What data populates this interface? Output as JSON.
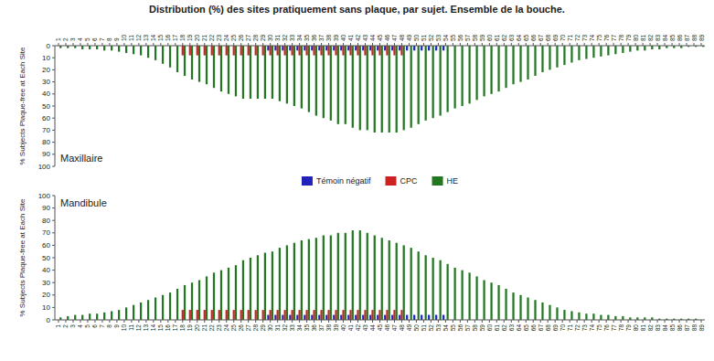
{
  "chart_data": [
    {
      "type": "bar",
      "title": "Distribution (%) des sites pratiquement sans plaque, par sujet. Ensemble de la bouche.",
      "ylabel": "% Subjects Plaque-free at Each Site",
      "annotations": [
        "Maxillaire"
      ],
      "categories": [
        "1",
        "2",
        "3",
        "4",
        "5",
        "6",
        "7",
        "8",
        "9",
        "10",
        "11",
        "12",
        "13",
        "14",
        "15",
        "16",
        "17",
        "18",
        "19",
        "20",
        "21",
        "22",
        "23",
        "24",
        "25",
        "26",
        "27",
        "28",
        "29",
        "30",
        "31",
        "32",
        "33",
        "34",
        "35",
        "36",
        "37",
        "38",
        "39",
        "40",
        "41",
        "42",
        "43",
        "44",
        "45",
        "46",
        "47",
        "48",
        "49",
        "50",
        "51",
        "52",
        "53",
        "54",
        "55",
        "56",
        "57",
        "58",
        "59",
        "60",
        "61",
        "62",
        "63",
        "64",
        "65",
        "66",
        "67",
        "68",
        "69",
        "70",
        "71",
        "72",
        "73",
        "74",
        "75",
        "76",
        "77",
        "78",
        "79",
        "80",
        "81",
        "82",
        "83",
        "84",
        "85",
        "86",
        "87",
        "88",
        "89"
      ],
      "series": [
        {
          "name": "Témoin négatif",
          "color": "#2222bb",
          "values": [
            0,
            0,
            0,
            0,
            0,
            0,
            0,
            0,
            0,
            0,
            0,
            0,
            0,
            0,
            0,
            0,
            0,
            0,
            0,
            0,
            0,
            0,
            0,
            0,
            0,
            0,
            0,
            0,
            0,
            4,
            4,
            4,
            4,
            4,
            4,
            4,
            4,
            4,
            4,
            4,
            4,
            4,
            4,
            4,
            4,
            4,
            4,
            4,
            4,
            4,
            4,
            4,
            4,
            4,
            0,
            0,
            0,
            0,
            0,
            0,
            0,
            0,
            0,
            0,
            0,
            0,
            0,
            0,
            0,
            0,
            0,
            0,
            0,
            0,
            0,
            0,
            0,
            0,
            0,
            0,
            0,
            0,
            0,
            0,
            0,
            0,
            0,
            0,
            0
          ]
        },
        {
          "name": "CPC",
          "color": "#cc2222",
          "values": [
            0,
            0,
            0,
            0,
            0,
            0,
            0,
            0,
            0,
            0,
            0,
            0,
            0,
            0,
            0,
            0,
            0,
            8,
            8,
            8,
            8,
            8,
            8,
            8,
            8,
            8,
            8,
            8,
            8,
            8,
            8,
            8,
            8,
            8,
            8,
            8,
            8,
            8,
            8,
            8,
            8,
            8,
            8,
            8,
            8,
            8,
            8,
            8,
            0,
            0,
            0,
            0,
            0,
            0,
            0,
            0,
            0,
            0,
            0,
            0,
            0,
            0,
            0,
            0,
            0,
            0,
            0,
            0,
            0,
            0,
            0,
            0,
            0,
            0,
            0,
            0,
            0,
            0,
            0,
            0,
            0,
            0,
            0,
            0,
            0,
            0,
            0,
            0,
            0
          ]
        },
        {
          "name": "HE",
          "color": "#227722",
          "values": [
            2,
            2,
            2,
            3,
            3,
            3,
            4,
            4,
            5,
            6,
            7,
            8,
            10,
            12,
            15,
            18,
            22,
            25,
            28,
            30,
            32,
            35,
            38,
            40,
            42,
            44,
            44,
            44,
            44,
            44,
            46,
            48,
            50,
            52,
            55,
            58,
            60,
            62,
            65,
            65,
            68,
            70,
            70,
            72,
            72,
            72,
            72,
            70,
            68,
            65,
            62,
            60,
            58,
            55,
            52,
            50,
            48,
            45,
            42,
            40,
            38,
            35,
            32,
            30,
            28,
            25,
            22,
            20,
            18,
            16,
            14,
            12,
            11,
            10,
            9,
            8,
            7,
            6,
            5,
            4,
            4,
            3,
            3,
            2,
            2,
            2,
            1,
            1,
            1
          ]
        }
      ],
      "ylim": [
        100,
        0
      ],
      "yticks": [
        0,
        10,
        20,
        30,
        40,
        50,
        60,
        70,
        80,
        90,
        100
      ],
      "grid": false,
      "legend": "bottom"
    },
    {
      "type": "bar",
      "ylabel": "% Subjects Plaque-free at Each Site",
      "annotations": [
        "Mandibule"
      ],
      "categories": [
        "1",
        "2",
        "3",
        "4",
        "5",
        "6",
        "7",
        "8",
        "9",
        "10",
        "11",
        "12",
        "13",
        "14",
        "15",
        "16",
        "17",
        "18",
        "19",
        "20",
        "21",
        "22",
        "23",
        "24",
        "25",
        "26",
        "27",
        "28",
        "29",
        "30",
        "31",
        "32",
        "33",
        "34",
        "35",
        "36",
        "37",
        "38",
        "39",
        "40",
        "41",
        "42",
        "43",
        "44",
        "45",
        "46",
        "47",
        "48",
        "49",
        "50",
        "51",
        "52",
        "53",
        "54",
        "55",
        "56",
        "57",
        "58",
        "59",
        "60",
        "61",
        "62",
        "63",
        "64",
        "65",
        "66",
        "67",
        "68",
        "69",
        "70",
        "71",
        "72",
        "73",
        "74",
        "75",
        "76",
        "77",
        "78",
        "79",
        "80",
        "81",
        "82",
        "83",
        "84",
        "85",
        "86",
        "87",
        "88",
        "89"
      ],
      "series": [
        {
          "color": "#2222bb",
          "values": [
            0,
            0,
            0,
            0,
            0,
            0,
            0,
            0,
            0,
            0,
            0,
            0,
            0,
            0,
            0,
            0,
            0,
            0,
            0,
            0,
            0,
            0,
            0,
            0,
            0,
            0,
            0,
            0,
            0,
            4,
            4,
            4,
            4,
            4,
            4,
            4,
            4,
            4,
            4,
            4,
            4,
            4,
            4,
            4,
            4,
            4,
            4,
            4,
            4,
            4,
            4,
            4,
            4,
            4,
            0,
            0,
            0,
            0,
            0,
            0,
            0,
            0,
            0,
            0,
            0,
            0,
            0,
            0,
            0,
            0,
            0,
            0,
            0,
            0,
            0,
            0,
            0,
            0,
            0,
            0,
            0,
            0,
            0,
            0,
            0,
            0,
            0,
            0,
            0
          ]
        },
        {
          "color": "#cc2222",
          "values": [
            0,
            0,
            0,
            0,
            0,
            0,
            0,
            0,
            0,
            0,
            0,
            0,
            0,
            0,
            0,
            0,
            0,
            8,
            8,
            8,
            8,
            8,
            8,
            8,
            8,
            8,
            8,
            8,
            8,
            8,
            8,
            8,
            8,
            8,
            8,
            8,
            8,
            8,
            8,
            8,
            8,
            8,
            8,
            8,
            8,
            8,
            8,
            8,
            0,
            0,
            0,
            0,
            0,
            0,
            0,
            0,
            0,
            0,
            0,
            0,
            0,
            0,
            0,
            0,
            0,
            0,
            0,
            0,
            0,
            0,
            0,
            0,
            0,
            0,
            0,
            0,
            0,
            0,
            0,
            0,
            0,
            0,
            0,
            0,
            0,
            0,
            0,
            0,
            0
          ]
        },
        {
          "color": "#227722",
          "values": [
            2,
            3,
            4,
            4,
            5,
            5,
            6,
            7,
            8,
            10,
            12,
            14,
            16,
            18,
            20,
            22,
            25,
            28,
            30,
            32,
            35,
            38,
            40,
            42,
            44,
            48,
            50,
            52,
            54,
            55,
            58,
            60,
            62,
            64,
            65,
            66,
            68,
            68,
            70,
            70,
            72,
            72,
            70,
            68,
            66,
            64,
            62,
            60,
            58,
            55,
            52,
            50,
            48,
            45,
            42,
            40,
            38,
            35,
            32,
            30,
            28,
            25,
            22,
            20,
            18,
            16,
            14,
            12,
            10,
            8,
            7,
            6,
            5,
            5,
            4,
            4,
            3,
            3,
            2,
            2,
            2,
            2,
            1,
            1,
            1,
            1,
            1,
            1,
            0
          ]
        }
      ],
      "ylim": [
        0,
        100
      ],
      "yticks": [
        0,
        10,
        20,
        30,
        40,
        50,
        60,
        70,
        80,
        90,
        100
      ],
      "grid": false
    }
  ]
}
